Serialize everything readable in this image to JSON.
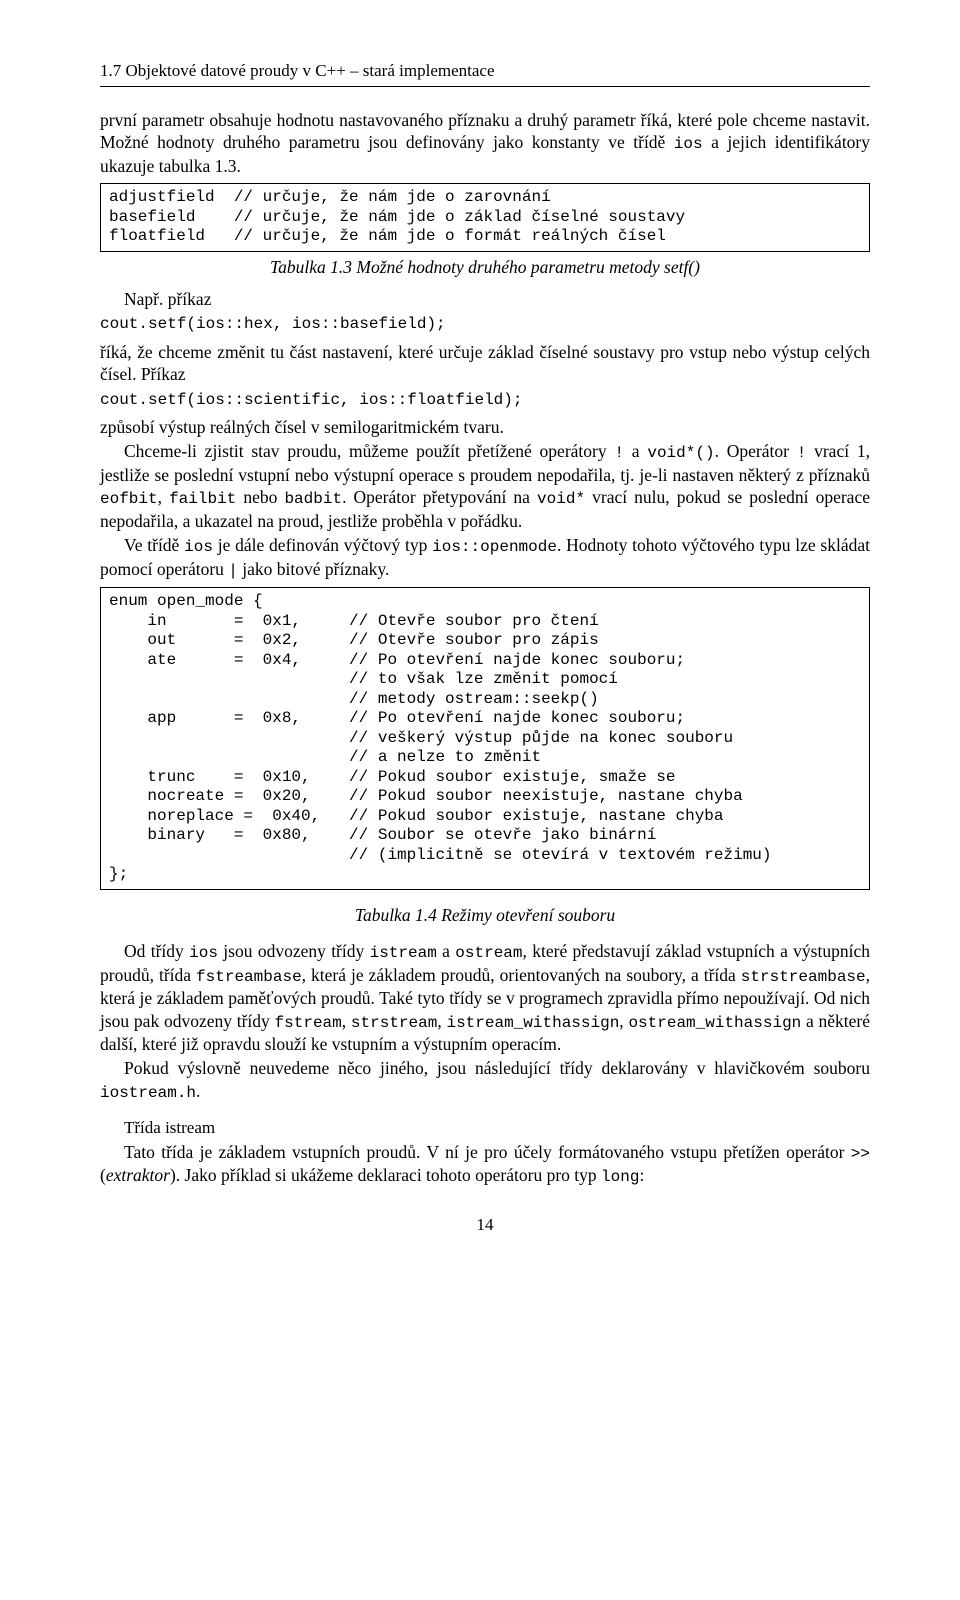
{
  "header": "1.7 Objektové datové proudy v C++ – stará implementace",
  "p1": "první parametr obsahuje hodnotu nastavovaného příznaku a druhý parametr říká, které pole chceme nastavit. Možné hodnoty druhého parametru jsou definovány jako konstanty ve třídě ",
  "p1_code": "ios",
  "p1b": " a jejich identifikátory ukazuje tabulka 1.3.",
  "codebox1": "adjustfield  // určuje, že nám jde o zarovnání\nbasefield    // určuje, že nám jde o základ číselné soustavy\nfloatfield   // určuje, že nám jde o formát reálných čísel",
  "caption1": "Tabulka 1.3 Možné hodnoty druhého parametru metody setf()",
  "napr": "Např. příkaz",
  "code_setf1": "cout.setf(ios::hex, ios::basefield);",
  "p2": "říká, že chceme změnit tu část nastavení, které určuje základ číselné soustavy pro vstup nebo výstup celých čísel. Příkaz",
  "code_setf2": "cout.setf(ios::scientific, ios::floatfield);",
  "p3": "způsobí výstup reálných čísel v semilogaritmickém tvaru.",
  "p4a": "Chceme-li zjistit stav proudu, můžeme použít přetížené operátory ",
  "p4_code1": "!",
  "p4b": " a ",
  "p4_code2": "void*()",
  "p4c": ". Operátor ",
  "p4_code3": "!",
  "p4d": " vrací 1, jestliže se poslední vstupní nebo výstupní operace s proudem nepodařila, tj. je-li nastaven některý z příznaků ",
  "p4_code4": "eofbit",
  "p4e": ", ",
  "p4_code5": "failbit",
  "p4f": " nebo ",
  "p4_code6": "badbit",
  "p4g": ". Operátor přetypování na ",
  "p4_code7": "void*",
  "p4h": " vrací nulu, pokud se poslední operace nepodařila, a ukazatel na proud, jestliže proběhla v pořádku.",
  "p5a": "Ve třídě ",
  "p5_code1": "ios",
  "p5b": " je dále definován výčtový typ ",
  "p5_code2": "ios::openmode",
  "p5c": ". Hodnoty tohoto výčtového typu lze skládat pomocí operátoru ",
  "p5_code3": "|",
  "p5d": " jako bitové příznaky.",
  "codebox2": "enum open_mode {\n    in       =  0x1,     // Otevře soubor pro čtení\n    out      =  0x2,     // Otevře soubor pro zápis\n    ate      =  0x4,     // Po otevření najde konec souboru;\n                         // to však lze změnit pomocí\n                         // metody ostream::seekp()\n    app      =  0x8,     // Po otevření najde konec souboru;\n                         // veškerý výstup půjde na konec souboru\n                         // a nelze to změnit\n    trunc    =  0x10,    // Pokud soubor existuje, smaže se\n    nocreate =  0x20,    // Pokud soubor neexistuje, nastane chyba\n    noreplace =  0x40,   // Pokud soubor existuje, nastane chyba\n    binary   =  0x80,    // Soubor se otevře jako binární\n                         // (implicitně se otevírá v textovém režimu)\n};",
  "caption2": "Tabulka 1.4 Režimy otevření souboru",
  "p6a": "Od třídy ",
  "p6_code1": "ios",
  "p6b": " jsou odvozeny třídy ",
  "p6_code2": "istream",
  "p6c": " a ",
  "p6_code3": "ostream",
  "p6d": ", které představují základ vstupních a výstupních proudů, třída ",
  "p6_code4": "fstreambase",
  "p6e": ", která je základem proudů, orientovaných na soubory, a třída ",
  "p6_code5": "strstreambase",
  "p6f": ", která je základem paměťových proudů. Také tyto třídy se v programech zpravidla přímo nepoužívají. Od nich jsou pak odvozeny třídy ",
  "p6_code6": "fstream",
  "p6g": ", ",
  "p6_code7": "strstream",
  "p6h": ", ",
  "p6_code8": "istream_withassign",
  "p6i": ", ",
  "p6_code9": "ostream_withassign",
  "p6j": " a některé další, které již opravdu slouží ke vstupním a výstupním operacím.",
  "p7a": "Pokud výslovně neuvedeme něco jiného, jsou následující třídy deklarovány v hlavičkovém souboru ",
  "p7_code1": "iostream.h",
  "p7b": ".",
  "subhead": "Třída istream",
  "p8a": "Tato třída je základem vstupních proudů. V ní je pro účely formátovaného vstupu přetížen operátor ",
  "p8_code1": ">>",
  "p8b": " (",
  "p8_em": "extraktor",
  "p8c": "). Jako příklad si ukážeme deklaraci tohoto operátoru pro typ ",
  "p8_code2": "long",
  "p8d": ":",
  "pagenum": "14"
}
